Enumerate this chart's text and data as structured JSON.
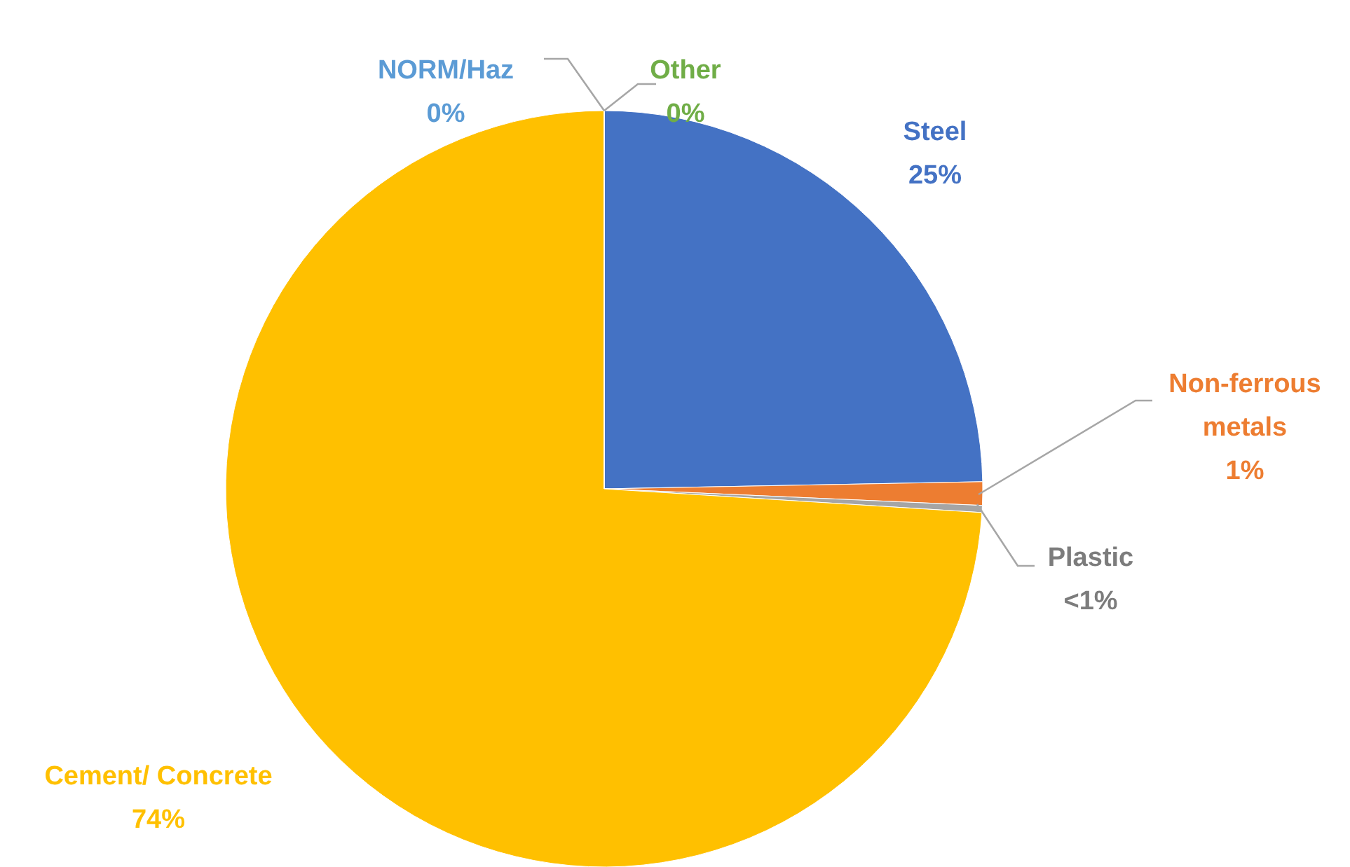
{
  "chart_data": {
    "type": "pie",
    "categories": [
      "Steel",
      "Non-ferrous metals",
      "Plastic",
      "Cement/ Concrete",
      "NORM/Haz",
      "Other"
    ],
    "values": [
      24.7,
      1,
      0.3,
      74,
      0,
      0
    ],
    "value_labels": [
      "25%",
      "1%",
      "<1%",
      "74%",
      "0%",
      "0%"
    ],
    "colors": [
      "#4472c4",
      "#ed7d31",
      "#a5a5a5",
      "#ffc000",
      "#5b9bd5",
      "#70ad47"
    ]
  }
}
